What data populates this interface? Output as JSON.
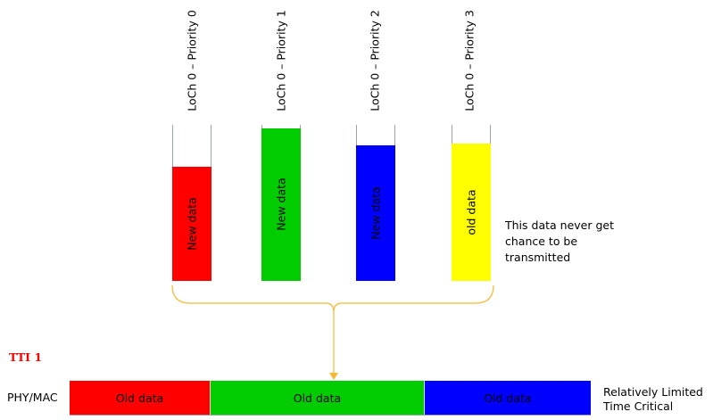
{
  "queues": [
    {
      "label": "LoCh 0 – Priority 0",
      "fill_text": "New data",
      "color": "#ff0000",
      "fill_level": 0.73
    },
    {
      "label": "LoCh 0 – Priority 1",
      "fill_text": "New data",
      "color": "#00cc00",
      "fill_level": 0.98
    },
    {
      "label": "LoCh 0 – Priority 2",
      "fill_text": "New data",
      "color": "#0000ff",
      "fill_level": 0.87
    },
    {
      "label": "LoCh 0 – Priority 3",
      "fill_text": "old data",
      "color": "#ffff00",
      "fill_level": 0.88
    }
  ],
  "note": "This data never get chance to be transmitted",
  "brace_color": "#f5b830",
  "tti_label": "TTI 1",
  "tti_color": "#ff0000",
  "phy_label": "PHY/MAC",
  "segments": [
    {
      "text": "Old data",
      "color": "#ff0000",
      "share": 0.27
    },
    {
      "text": "Old data",
      "color": "#00cc00",
      "share": 0.41
    },
    {
      "text": "Old data",
      "color": "#0000ff",
      "share": 0.32
    }
  ],
  "critical_text": "Relatively Limited Time Critical"
}
